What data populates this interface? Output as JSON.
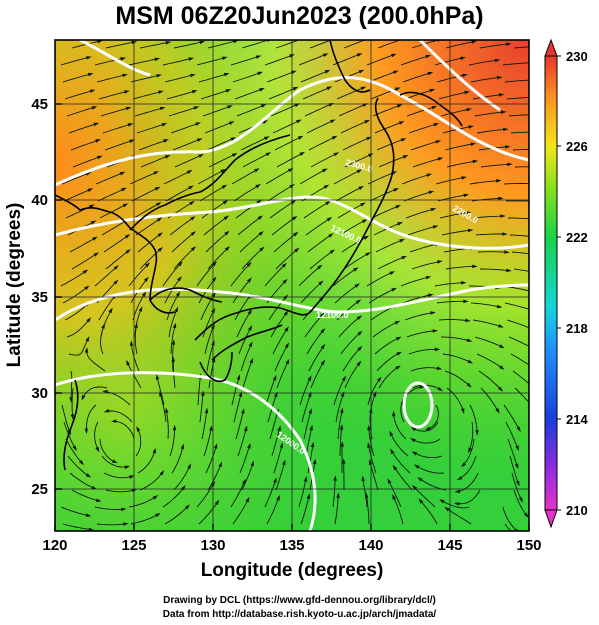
{
  "title": "MSM 06Z20Jun2023 (200.0hPa)",
  "x_axis": {
    "label": "Longitude (degrees)",
    "range": [
      120,
      150
    ],
    "ticks": [
      "120",
      "125",
      "130",
      "135",
      "140",
      "145",
      "150"
    ]
  },
  "y_axis": {
    "label": "Latitude (degrees)",
    "range": [
      22.5,
      47.6
    ],
    "ticks": [
      "25",
      "30",
      "35",
      "40",
      "45"
    ]
  },
  "colorbar": {
    "range": [
      210,
      230
    ],
    "ticks": [
      "210",
      "214",
      "218",
      "222",
      "226",
      "230"
    ]
  },
  "contour_labels": [
    "2300.0",
    "12100.0",
    "2200.0",
    "12100.0",
    "12000.0"
  ],
  "credits": {
    "line1": "Drawing by DCL (https://www.gfd-dennou.org/library/dcl/)",
    "line2": "Data from http://database.rish.kyoto-u.ac.jp/arch/jmadata/"
  }
}
